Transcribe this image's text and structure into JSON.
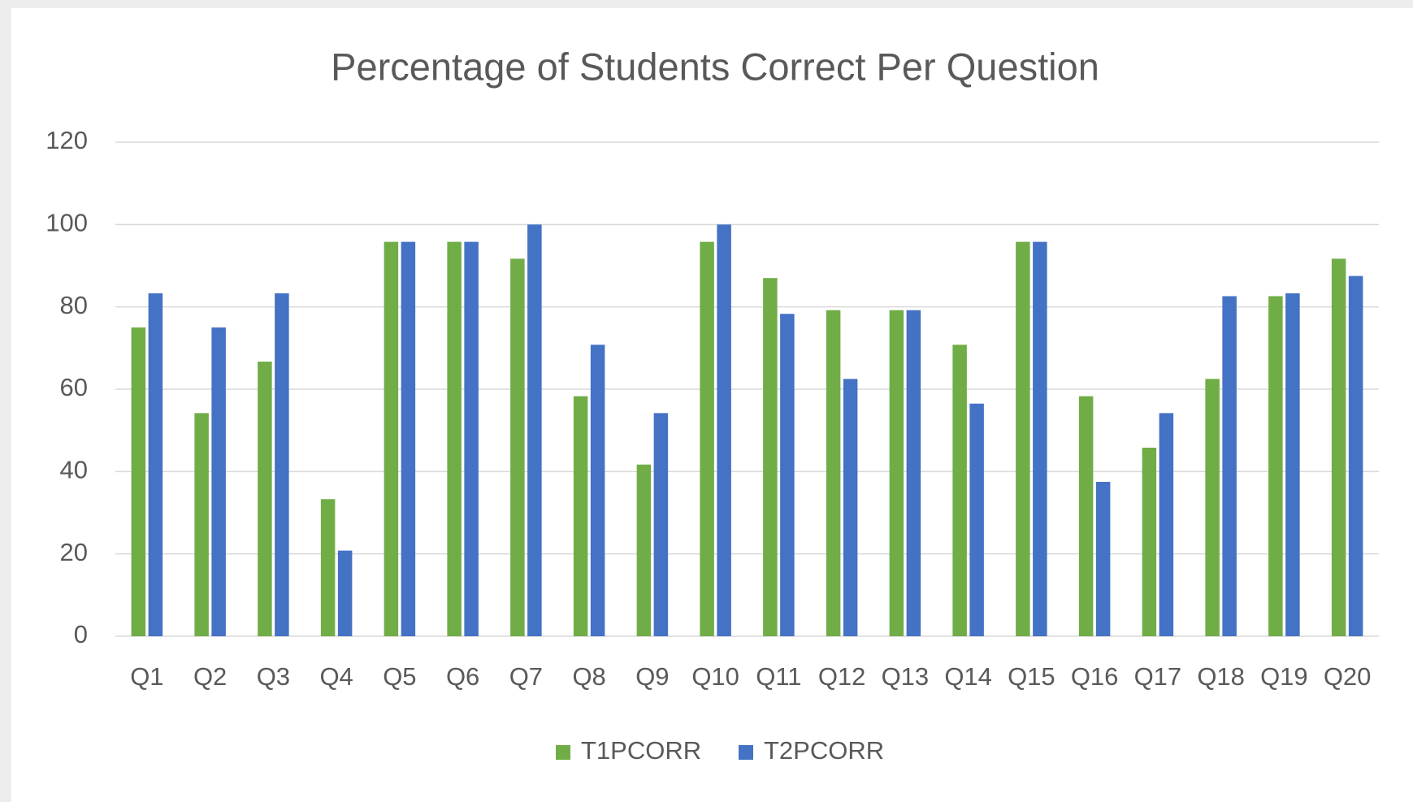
{
  "chart_data": {
    "type": "bar",
    "title": "Percentage of Students Correct Per Question",
    "categories": [
      "Q1",
      "Q2",
      "Q3",
      "Q4",
      "Q5",
      "Q6",
      "Q7",
      "Q8",
      "Q9",
      "Q10",
      "Q11",
      "Q12",
      "Q13",
      "Q14",
      "Q15",
      "Q16",
      "Q17",
      "Q18",
      "Q19",
      "Q20"
    ],
    "series": [
      {
        "name": "T1PCORR",
        "color": "#70ad47",
        "values": [
          75,
          54.2,
          66.7,
          33.3,
          95.8,
          95.8,
          91.7,
          58.3,
          41.7,
          95.8,
          87,
          79.2,
          79.2,
          70.8,
          95.8,
          58.3,
          45.8,
          62.5,
          82.6,
          91.7
        ]
      },
      {
        "name": "T2PCORR",
        "color": "#4472c4",
        "values": [
          83.3,
          75,
          83.3,
          20.8,
          95.8,
          95.8,
          100,
          70.8,
          54.2,
          100,
          78.3,
          62.5,
          79.2,
          56.5,
          95.8,
          37.5,
          54.2,
          82.6,
          83.3,
          87.5
        ]
      }
    ],
    "ylim": [
      0,
      120
    ],
    "yticks": [
      0,
      20,
      40,
      60,
      80,
      100,
      120
    ],
    "grid": true,
    "legend": "bottom"
  }
}
